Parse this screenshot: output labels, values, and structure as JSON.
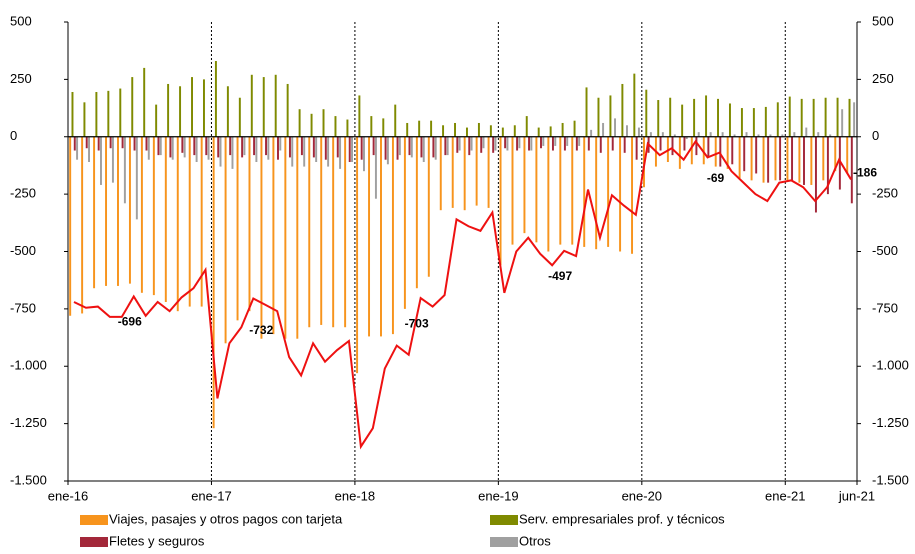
{
  "chart_data": {
    "type": "bar_line",
    "categories": [
      "ene-16",
      null,
      null,
      null,
      null,
      null,
      null,
      null,
      null,
      null,
      null,
      null,
      "ene-17",
      null,
      null,
      null,
      null,
      null,
      null,
      null,
      null,
      null,
      null,
      null,
      "ene-18",
      null,
      null,
      null,
      null,
      null,
      null,
      null,
      null,
      null,
      null,
      null,
      "ene-19",
      null,
      null,
      null,
      null,
      null,
      null,
      null,
      null,
      null,
      null,
      null,
      "ene-20",
      null,
      null,
      null,
      null,
      null,
      null,
      null,
      null,
      null,
      null,
      null,
      "ene-21",
      null,
      null,
      null,
      null,
      "jun-21"
    ],
    "series": [
      {
        "name": "Viajes, pasajes y otros pagos con tarjeta",
        "color": "#f7941d",
        "kind": "bar",
        "values": [
          -780,
          -770,
          -660,
          -650,
          -650,
          -640,
          -680,
          -690,
          -720,
          -760,
          -740,
          -740,
          -1270,
          -900,
          -800,
          -760,
          -880,
          -860,
          -880,
          -880,
          -830,
          -820,
          -830,
          -830,
          -1030,
          -870,
          -870,
          -860,
          -750,
          -660,
          -610,
          -320,
          -310,
          -320,
          -300,
          -310,
          -560,
          -470,
          -420,
          -460,
          -500,
          -470,
          -470,
          -480,
          -490,
          -480,
          -500,
          -510,
          -220,
          -130,
          -110,
          -140,
          -120,
          -120,
          -130,
          -140,
          -180,
          -190,
          -200,
          -190,
          -190,
          -200,
          -210,
          -190,
          -150,
          -160
        ]
      },
      {
        "name": "Serv. empresariales prof. y técnicos",
        "color": "#7f8a00",
        "kind": "bar",
        "values": [
          195,
          150,
          195,
          200,
          210,
          260,
          300,
          140,
          230,
          220,
          260,
          250,
          330,
          220,
          170,
          270,
          260,
          270,
          230,
          120,
          100,
          120,
          90,
          75,
          180,
          90,
          80,
          140,
          60,
          70,
          70,
          50,
          60,
          40,
          60,
          50,
          40,
          50,
          90,
          40,
          45,
          60,
          70,
          215,
          170,
          180,
          230,
          275,
          205,
          160,
          170,
          140,
          165,
          180,
          165,
          145,
          125,
          125,
          130,
          150,
          175,
          165,
          165,
          170,
          170,
          165
        ]
      },
      {
        "name": "Fletes y seguros",
        "color": "#a3283a",
        "kind": "bar",
        "values": [
          -60,
          -50,
          -60,
          -50,
          -50,
          -60,
          -60,
          -80,
          -90,
          -70,
          -80,
          -80,
          -90,
          -80,
          -90,
          -80,
          -80,
          -100,
          -90,
          -80,
          -90,
          -100,
          -90,
          -110,
          -100,
          -80,
          -100,
          -100,
          -80,
          -90,
          -90,
          -80,
          -70,
          -80,
          -70,
          -70,
          -50,
          -60,
          -60,
          -50,
          -60,
          -60,
          -60,
          -60,
          -70,
          -60,
          -70,
          -100,
          -70,
          -60,
          -80,
          -60,
          -80,
          -90,
          -130,
          -120,
          -150,
          -160,
          -200,
          -190,
          -190,
          -210,
          -330,
          -250,
          -230,
          -290
        ]
      },
      {
        "name": "Otros",
        "color": "#a0a0a0",
        "kind": "bar",
        "values": [
          -100,
          -110,
          -210,
          -200,
          -290,
          -360,
          -100,
          -80,
          -100,
          -90,
          -110,
          -100,
          -130,
          -140,
          -80,
          -110,
          -100,
          -60,
          -130,
          -130,
          -110,
          -130,
          -140,
          -110,
          -150,
          -270,
          -120,
          -80,
          -90,
          -110,
          -100,
          -80,
          -60,
          -60,
          -50,
          -60,
          -60,
          -50,
          -60,
          -40,
          -40,
          -40,
          -40,
          30,
          60,
          80,
          50,
          40,
          20,
          20,
          10,
          -10,
          20,
          20,
          20,
          10,
          20,
          10,
          10,
          10,
          20,
          40,
          20,
          10,
          120,
          150
        ]
      },
      {
        "color": "#ee1111",
        "kind": "line",
        "values": [
          -720,
          -745,
          -740,
          -785,
          -785,
          -696,
          -780,
          -720,
          -760,
          -700,
          -660,
          -580,
          -1140,
          -900,
          -830,
          -705,
          -732,
          -760,
          -960,
          -1040,
          -900,
          -980,
          -930,
          -890,
          -1350,
          -1270,
          -1010,
          -910,
          -950,
          -703,
          -740,
          -690,
          -360,
          -390,
          -410,
          -330,
          -680,
          -500,
          -440,
          -510,
          -560,
          -497,
          -520,
          -230,
          -440,
          -255,
          -300,
          -340,
          -30,
          -80,
          -50,
          -100,
          -20,
          -90,
          -69,
          -150,
          -200,
          -250,
          -280,
          -200,
          -190,
          -220,
          -280,
          -220,
          -100,
          -186
        ],
        "value_labels": [
          null,
          null,
          null,
          null,
          null,
          "-696",
          null,
          null,
          null,
          null,
          null,
          null,
          null,
          null,
          null,
          null,
          "-732",
          null,
          null,
          null,
          null,
          null,
          null,
          null,
          null,
          null,
          null,
          null,
          null,
          "-703",
          null,
          null,
          null,
          null,
          null,
          null,
          null,
          null,
          null,
          null,
          null,
          "-497",
          null,
          null,
          null,
          null,
          null,
          null,
          null,
          null,
          null,
          null,
          null,
          null,
          "-69",
          null,
          null,
          null,
          null,
          null,
          null,
          null,
          null,
          null,
          null,
          "-186"
        ]
      }
    ],
    "ylim": [
      -1500,
      500
    ],
    "yticks": [
      {
        "value": -1500,
        "label": "-1.500"
      },
      {
        "value": -1250,
        "label": "-1.250"
      },
      {
        "value": -1000,
        "label": "-1.000"
      },
      -750,
      -500,
      -250,
      0,
      250,
      500
    ],
    "y2lim": [
      -1500,
      500
    ],
    "y2ticks": [
      {
        "value": -1500,
        "label": "-1.500"
      },
      {
        "value": -1250,
        "label": "-1.250"
      },
      {
        "value": -1000,
        "label": "-1.000"
      },
      -750,
      -500,
      -250,
      0,
      250,
      500
    ]
  }
}
